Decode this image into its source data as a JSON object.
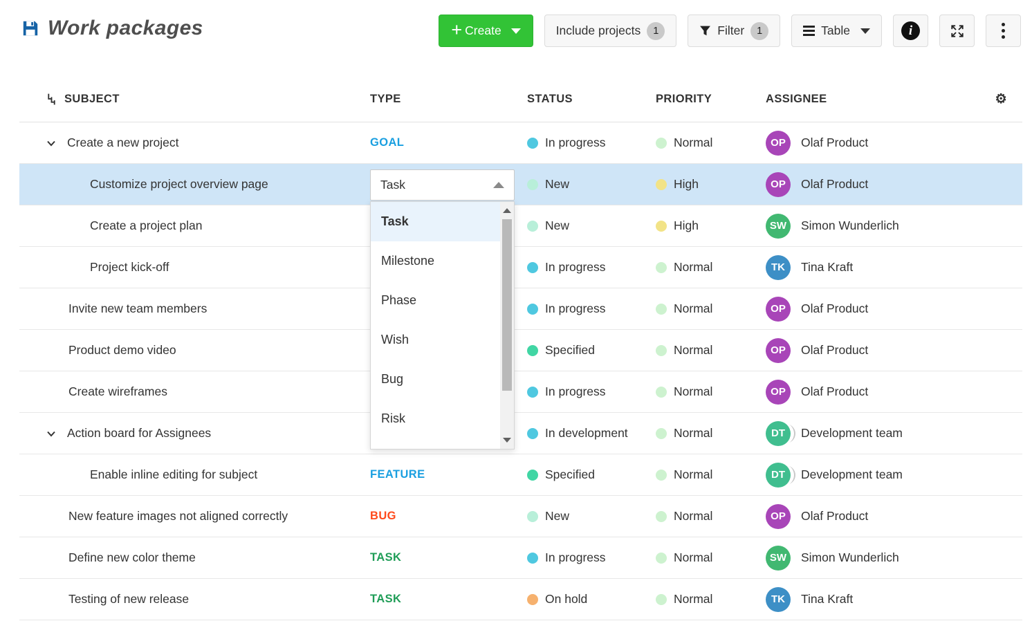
{
  "header": {
    "title": "Work packages"
  },
  "toolbar": {
    "create_label": "Create",
    "include_projects_label": "Include projects",
    "include_projects_count": "1",
    "filter_label": "Filter",
    "filter_count": "1",
    "table_label": "Table",
    "gear_icon": "⚙"
  },
  "table": {
    "columns": [
      "SUBJECT",
      "TYPE",
      "STATUS",
      "PRIORITY",
      "ASSIGNEE"
    ],
    "rows": [
      {
        "subject": "Create a new project",
        "indent": 0,
        "chevron": true,
        "selected": false,
        "type": "GOAL",
        "status": "In progress",
        "priority": "Normal",
        "assignee": "Olaf Product",
        "initials": "OP",
        "group": false
      },
      {
        "subject": "Customize project overview page",
        "indent": 1,
        "chevron": false,
        "selected": true,
        "type": "",
        "status": "New",
        "priority": "High",
        "assignee": "Olaf Product",
        "initials": "OP",
        "group": false
      },
      {
        "subject": "Create a project plan",
        "indent": 1,
        "chevron": false,
        "selected": false,
        "type": "",
        "status": "New",
        "priority": "High",
        "assignee": "Simon Wunderlich",
        "initials": "SW",
        "group": false
      },
      {
        "subject": "Project kick-off",
        "indent": 1,
        "chevron": false,
        "selected": false,
        "type": "",
        "status": "In progress",
        "priority": "Normal",
        "assignee": "Tina Kraft",
        "initials": "TK",
        "group": false
      },
      {
        "subject": "Invite new team members",
        "indent": 0,
        "chevron": false,
        "selected": false,
        "type": "",
        "status": "In progress",
        "priority": "Normal",
        "assignee": "Olaf Product",
        "initials": "OP",
        "group": false
      },
      {
        "subject": "Product demo video",
        "indent": 0,
        "chevron": false,
        "selected": false,
        "type": "",
        "status": "Specified",
        "priority": "Normal",
        "assignee": "Olaf Product",
        "initials": "OP",
        "group": false
      },
      {
        "subject": "Create wireframes",
        "indent": 0,
        "chevron": false,
        "selected": false,
        "type": "",
        "status": "In progress",
        "priority": "Normal",
        "assignee": "Olaf Product",
        "initials": "OP",
        "group": false
      },
      {
        "subject": "Action board for Assignees",
        "indent": 0,
        "chevron": true,
        "selected": false,
        "type": "",
        "status": "In development",
        "priority": "Normal",
        "assignee": "Development team",
        "initials": "DT",
        "group": true
      },
      {
        "subject": "Enable inline editing for subject",
        "indent": 1,
        "chevron": false,
        "selected": false,
        "type": "FEATURE",
        "status": "Specified",
        "priority": "Normal",
        "assignee": "Development team",
        "initials": "DT",
        "group": true
      },
      {
        "subject": "New feature images not aligned correctly",
        "indent": 0,
        "chevron": false,
        "selected": false,
        "type": "BUG",
        "status": "New",
        "priority": "Normal",
        "assignee": "Olaf Product",
        "initials": "OP",
        "group": false
      },
      {
        "subject": "Define new color theme",
        "indent": 0,
        "chevron": false,
        "selected": false,
        "type": "TASK",
        "status": "In progress",
        "priority": "Normal",
        "assignee": "Simon Wunderlich",
        "initials": "SW",
        "group": false
      },
      {
        "subject": "Testing of new release",
        "indent": 0,
        "chevron": false,
        "selected": false,
        "type": "TASK",
        "status": "On hold",
        "priority": "Normal",
        "assignee": "Tina Kraft",
        "initials": "TK",
        "group": false
      }
    ]
  },
  "type_dropdown": {
    "selected": "Task",
    "options": [
      "Task",
      "Milestone",
      "Phase",
      "Wish",
      "Bug",
      "Risk"
    ]
  },
  "colors": {
    "accent_green": "#32c336",
    "title_icon_blue": "#1663a6",
    "selected_row": "#cfe5f7",
    "type": {
      "GOAL": "#1a9fe0",
      "FEATURE": "#1a9fe0",
      "BUG": "#ff4a1c",
      "TASK": "#1f9d57"
    },
    "status": {
      "In progress": "#4fc8e0",
      "New": "#b8efd9",
      "Specified": "#41d6a4",
      "In development": "#4fc8e0",
      "On hold": "#f6b16e"
    },
    "priority": {
      "Normal": "#cdf2cf",
      "High": "#f2e387"
    },
    "avatar": {
      "OP": "#a845b8",
      "SW": "#41b871",
      "TK": "#3d8fc6",
      "DT": "#40be8f"
    }
  }
}
